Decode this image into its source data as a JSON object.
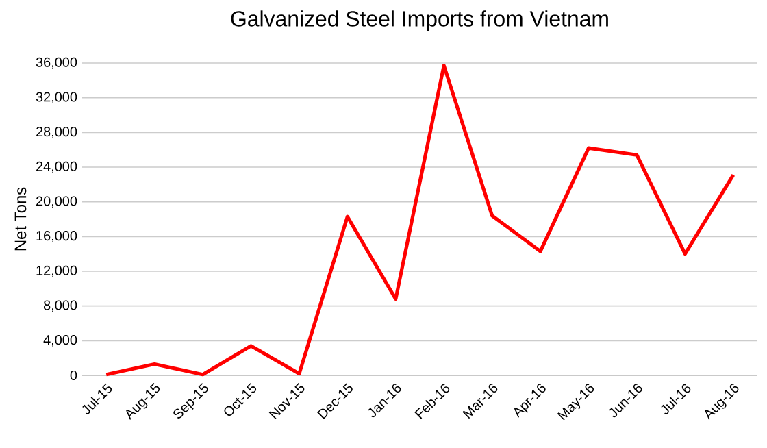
{
  "chart_data": {
    "type": "line",
    "title": "Galvanized Steel Imports from Vietnam",
    "ylabel": "Net Tons",
    "categories": [
      "Jul-15",
      "Aug-15",
      "Sep-15",
      "Oct-15",
      "Nov-15",
      "Dec-15",
      "Jan-16",
      "Feb-16",
      "Mar-16",
      "Apr-16",
      "May-16",
      "Jun-16",
      "Jul-16",
      "Aug-16"
    ],
    "series": [
      {
        "color": "#ff0000",
        "values": [
          100,
          1300,
          100,
          3400,
          200,
          18300,
          8800,
          35700,
          18400,
          14300,
          26200,
          25400,
          14000,
          23100
        ]
      }
    ],
    "ylim": [
      0,
      36000
    ],
    "yticks": [
      {
        "value": 0,
        "label": "0"
      },
      {
        "value": 4000,
        "label": "4,000"
      },
      {
        "value": 8000,
        "label": "8,000"
      },
      {
        "value": 12000,
        "label": "12,000"
      },
      {
        "value": 16000,
        "label": "16,000"
      },
      {
        "value": 20000,
        "label": "20,000"
      },
      {
        "value": 24000,
        "label": "24,000"
      },
      {
        "value": 28000,
        "label": "28,000"
      },
      {
        "value": 32000,
        "label": "32,000"
      },
      {
        "value": 36000,
        "label": "36,000"
      }
    ],
    "grid": "y",
    "legend": false,
    "marker": "none",
    "line_style": "solid"
  }
}
